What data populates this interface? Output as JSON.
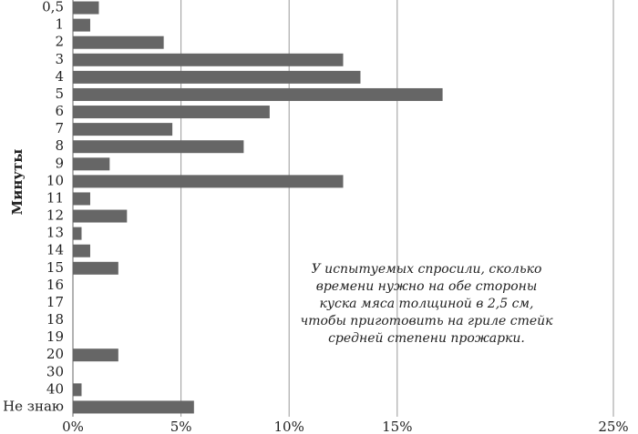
{
  "chart_data": {
    "type": "bar",
    "orientation": "horizontal",
    "y_label": "Минуты",
    "categories": [
      "0,5",
      "1",
      "2",
      "3",
      "4",
      "5",
      "6",
      "7",
      "8",
      "9",
      "10",
      "11",
      "12",
      "13",
      "14",
      "15",
      "16",
      "17",
      "18",
      "19",
      "20",
      "30",
      "40",
      "Не знаю"
    ],
    "values": [
      1.2,
      0.8,
      4.2,
      12.5,
      13.3,
      17.1,
      9.1,
      4.6,
      7.9,
      1.7,
      12.5,
      0.8,
      2.5,
      0.4,
      0.8,
      2.1,
      0,
      0,
      0,
      0,
      2.1,
      0,
      0.4,
      5.6
    ],
    "color": "#666666",
    "xlim": [
      0,
      25
    ],
    "xticks": [
      {
        "value": 0,
        "label": "0%"
      },
      {
        "value": 5,
        "label": "5%"
      },
      {
        "value": 10,
        "label": "10%"
      },
      {
        "value": 15,
        "label": "15%"
      },
      {
        "value": 25,
        "label": "25%"
      }
    ],
    "grid": true,
    "annotation": [
      "У испытуемых спросили, сколько",
      "времени нужно на обе стороны",
      "куска мяса толщиной в 2,5 см,",
      "чтобы приготовить на гриле стейк",
      "средней степени прожарки."
    ]
  }
}
